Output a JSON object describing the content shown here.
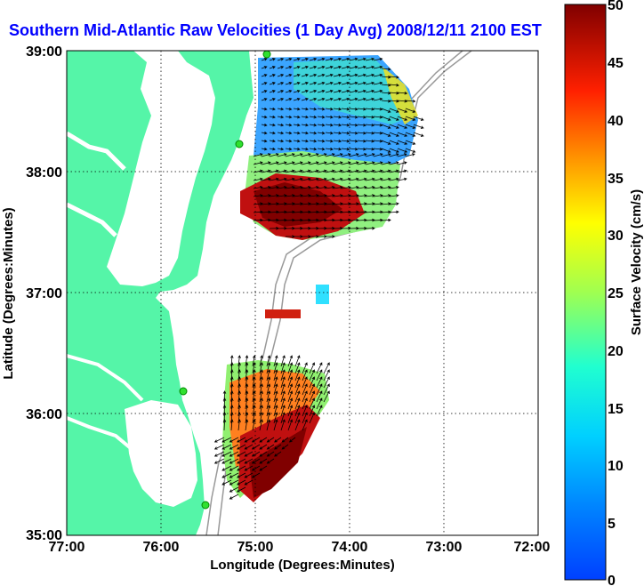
{
  "title": "Southern Mid-Atlantic Raw Velocities (1 Day Avg) 2008/12/11 2100 EST",
  "map": {
    "xlabel": "Longitude (Degrees:Minutes)",
    "ylabel": "Latitude (Degrees:Minutes)",
    "x_ticks": [
      "77:00",
      "76:00",
      "75:00",
      "74:00",
      "73:00",
      "72:00"
    ],
    "y_ticks": [
      "39:00",
      "38:00",
      "37:00",
      "36:00",
      "35:00"
    ],
    "lon_range": [
      -77,
      -72
    ],
    "lat_range": [
      35,
      39
    ],
    "land_color": "#55f5a8",
    "water_color": "#ffffff",
    "grid": "dotted"
  },
  "colorbar": {
    "label": "Surface Velocity (cm/s)",
    "ticks": [
      "50",
      "45",
      "40",
      "35",
      "30",
      "25",
      "20",
      "15",
      "10",
      "5",
      "0"
    ],
    "range": [
      0,
      50
    ],
    "colormap": "jet"
  }
}
